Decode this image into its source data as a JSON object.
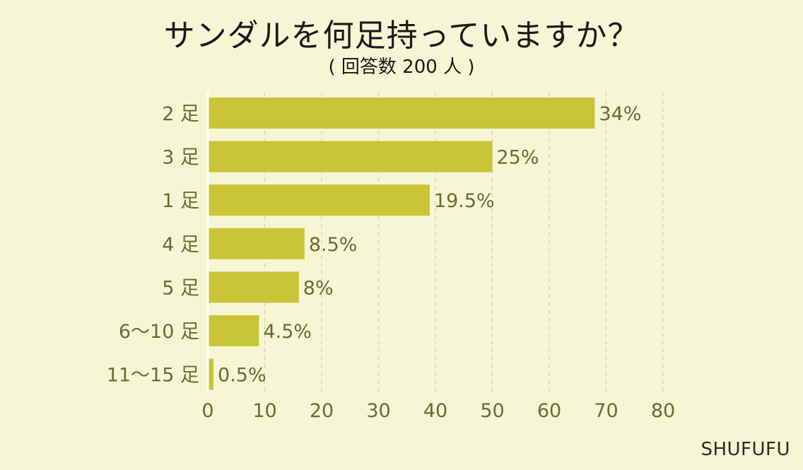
{
  "header": {
    "title": "サンダルを何足持っていますか？",
    "subtitle": "( 回答数 200 人 )"
  },
  "brand": "SHUFUFU",
  "colors": {
    "background": "#f6f6d5",
    "bar": "#c9c536",
    "label": "#6e6a30"
  },
  "chart_data": {
    "type": "bar",
    "orientation": "horizontal",
    "title": "サンダルを何足持っていますか？",
    "subtitle": "( 回答数 200 人 )",
    "categories": [
      "2 足",
      "3 足",
      "1 足",
      "4 足",
      "5 足",
      "6～10 足",
      "11～15 足"
    ],
    "values": [
      68,
      50,
      39,
      17,
      16,
      9,
      1
    ],
    "value_labels": [
      "34%",
      "25%",
      "19.5%",
      "8.5%",
      "8%",
      "4.5%",
      "0.5%"
    ],
    "xlim": [
      0,
      80
    ],
    "xticks": [
      0,
      10,
      20,
      30,
      40,
      50,
      60,
      70,
      80
    ],
    "grid": true,
    "legend": "none"
  }
}
